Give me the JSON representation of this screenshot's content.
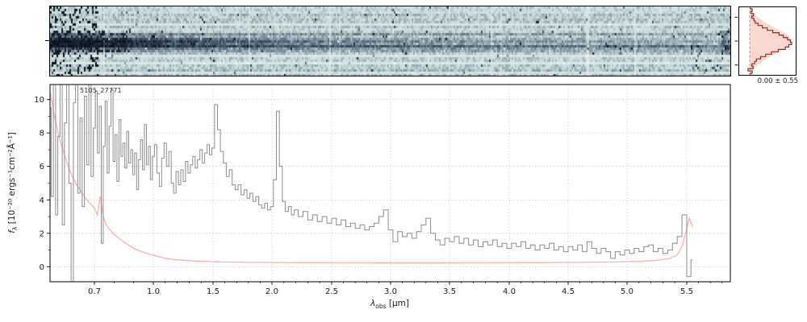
{
  "figure": {
    "background": "#ffffff"
  },
  "source_label": "5105_27771",
  "profile_stat": "0.00 ± 0.55",
  "axis_labels": {
    "x_main": "λ",
    "x_sub": "obs",
    "x_unit": " [μm]",
    "y_main": "f",
    "y_sub": "λ",
    "y_unit": " [10⁻²⁰ ergs⁻¹cm⁻²Å⁻¹]"
  },
  "chart_data": [
    {
      "id": "spectrum-1d",
      "type": "line",
      "title": "5105_27771",
      "xlabel": "λ_obs [μm]",
      "ylabel": "f_λ [10⁻²⁰ ergs⁻¹cm⁻²Å⁻¹]",
      "ylim": [
        -0.9,
        10.9
      ],
      "y_ticks": [
        0,
        2,
        4,
        6,
        8,
        10
      ],
      "y_minor_ticks": [
        1,
        3,
        5,
        7,
        9
      ],
      "x_ticks": [
        0.7,
        1.0,
        1.5,
        2.0,
        2.5,
        3.0,
        3.5,
        4.0,
        4.5,
        5.0,
        5.5
      ],
      "x_tick_labels": [
        "0.7",
        "1.0",
        "1.5",
        "2.0",
        "2.5",
        "3.0",
        "3.5",
        "4.0",
        "4.5",
        "5.0",
        "5.5"
      ],
      "grid": {
        "on": true,
        "style": "dotted",
        "color": "#bababa"
      },
      "x_axis": {
        "scale": "piecewise-prism-dispersion",
        "anchors_um": [
          0.6,
          0.7,
          1.0,
          1.5,
          2.0,
          2.5,
          3.0,
          3.5,
          4.0,
          4.5,
          5.0,
          5.5,
          5.87
        ],
        "anchors_frac": [
          0.0,
          0.0652,
          0.1518,
          0.2396,
          0.3262,
          0.414,
          0.5006,
          0.5872,
          0.675,
          0.7616,
          0.8482,
          0.936,
          1.0
        ]
      },
      "series": [
        {
          "name": "flux",
          "color": "#8c8c8c",
          "style": "steps-mid",
          "lam": [
            0.6,
            0.605,
            0.61,
            0.615,
            0.62,
            0.625,
            0.63,
            0.635,
            0.64,
            0.645,
            0.65,
            0.655,
            0.66,
            0.665,
            0.67,
            0.675,
            0.68,
            0.685,
            0.69,
            0.695,
            0.7,
            0.71,
            0.72,
            0.73,
            0.74,
            0.75,
            0.76,
            0.77,
            0.78,
            0.79,
            0.8,
            0.81,
            0.82,
            0.83,
            0.84,
            0.85,
            0.86,
            0.87,
            0.88,
            0.89,
            0.9,
            0.91,
            0.92,
            0.93,
            0.94,
            0.95,
            0.96,
            0.97,
            0.98,
            0.99,
            1.0,
            1.02,
            1.04,
            1.06,
            1.08,
            1.1,
            1.12,
            1.14,
            1.16,
            1.18,
            1.2,
            1.22,
            1.24,
            1.26,
            1.28,
            1.3,
            1.32,
            1.34,
            1.36,
            1.38,
            1.4,
            1.42,
            1.44,
            1.46,
            1.48,
            1.5,
            1.525,
            1.55,
            1.575,
            1.6,
            1.625,
            1.65,
            1.675,
            1.7,
            1.725,
            1.75,
            1.775,
            1.8,
            1.825,
            1.85,
            1.875,
            1.9,
            1.925,
            1.95,
            1.975,
            2.0,
            2.025,
            2.05,
            2.075,
            2.1,
            2.125,
            2.15,
            2.175,
            2.2,
            2.24,
            2.28,
            2.32,
            2.36,
            2.4,
            2.44,
            2.48,
            2.52,
            2.56,
            2.6,
            2.64,
            2.68,
            2.72,
            2.76,
            2.8,
            2.84,
            2.88,
            2.92,
            2.96,
            3.0,
            3.04,
            3.08,
            3.12,
            3.16,
            3.2,
            3.24,
            3.28,
            3.32,
            3.36,
            3.4,
            3.44,
            3.48,
            3.52,
            3.56,
            3.6,
            3.64,
            3.68,
            3.72,
            3.76,
            3.8,
            3.84,
            3.88,
            3.92,
            3.96,
            4.0,
            4.04,
            4.08,
            4.12,
            4.16,
            4.2,
            4.24,
            4.28,
            4.32,
            4.36,
            4.4,
            4.44,
            4.48,
            4.52,
            4.56,
            4.6,
            4.64,
            4.68,
            4.72,
            4.76,
            4.8,
            4.84,
            4.88,
            4.92,
            4.96,
            5.0,
            5.04,
            5.08,
            5.12,
            5.16,
            5.2,
            5.24,
            5.28,
            5.32,
            5.36,
            5.4,
            5.44,
            5.48,
            5.52,
            5.55
          ],
          "flux": [
            9.5,
            4.2,
            11.5,
            3.1,
            7.8,
            11.5,
            2.5,
            8.6,
            11.5,
            5.0,
            -1.2,
            9.8,
            11.5,
            4.4,
            8.9,
            3.6,
            10.2,
            6.1,
            11.3,
            5.4,
            8.3,
            10.5,
            6.8,
            9.6,
            1.4,
            7.2,
            9.9,
            5.6,
            8.4,
            10.6,
            6.3,
            7.9,
            5.1,
            8.8,
            6.6,
            7.4,
            5.9,
            8.1,
            6.2,
            7.0,
            5.5,
            6.8,
            4.6,
            6.4,
            7.6,
            5.8,
            8.5,
            6.1,
            7.2,
            5.2,
            6.6,
            7.3,
            5.6,
            4.8,
            6.5,
            7.4,
            6.0,
            6.9,
            5.0,
            4.4,
            5.7,
            4.9,
            5.8,
            5.1,
            6.3,
            5.6,
            6.1,
            6.6,
            5.9,
            6.4,
            7.0,
            6.2,
            6.8,
            7.3,
            6.7,
            7.1,
            9.7,
            8.2,
            6.9,
            6.2,
            5.4,
            5.8,
            4.9,
            4.6,
            4.9,
            4.3,
            4.6,
            4.1,
            4.4,
            3.9,
            4.2,
            3.7,
            3.5,
            3.8,
            3.4,
            3.6,
            5.2,
            9.3,
            6.0,
            3.9,
            3.3,
            3.6,
            3.1,
            3.4,
            3.0,
            3.3,
            2.8,
            3.1,
            2.7,
            3.0,
            2.6,
            2.9,
            2.5,
            2.8,
            2.4,
            2.6,
            2.3,
            2.5,
            2.2,
            2.4,
            2.6,
            3.0,
            3.4,
            2.2,
            1.5,
            2.1,
            1.8,
            2.0,
            1.7,
            2.1,
            2.5,
            2.9,
            2.0,
            1.6,
            1.3,
            1.7,
            1.5,
            1.8,
            1.4,
            1.7,
            1.3,
            1.6,
            1.2,
            1.5,
            1.3,
            1.6,
            1.2,
            1.4,
            1.1,
            1.4,
            1.2,
            1.5,
            1.1,
            1.3,
            1.0,
            1.3,
            1.1,
            1.4,
            1.0,
            1.2,
            0.9,
            1.2,
            1.0,
            1.3,
            0.9,
            1.5,
            1.1,
            0.8,
            1.1,
            0.9,
            0.5,
            0.9,
            0.7,
            1.0,
            0.8,
            1.1,
            0.9,
            1.2,
            1.3,
            0.9,
            1.1,
            0.8,
            1.0,
            1.4,
            1.8,
            3.1,
            -0.6,
            0.4
          ]
        },
        {
          "name": "uncertainty",
          "color": "#f4b3b0",
          "style": "line",
          "lam": [
            0.6,
            0.61,
            0.62,
            0.63,
            0.64,
            0.65,
            0.66,
            0.67,
            0.68,
            0.69,
            0.7,
            0.715,
            0.73,
            0.745,
            0.76,
            0.78,
            0.8,
            0.83,
            0.86,
            0.9,
            0.94,
            0.98,
            1.02,
            1.06,
            1.1,
            1.15,
            1.2,
            1.3,
            1.4,
            1.5,
            1.6,
            1.8,
            2.0,
            2.3,
            2.6,
            3.0,
            3.4,
            3.8,
            4.2,
            4.6,
            4.9,
            5.1,
            5.25,
            5.35,
            5.42,
            5.46,
            5.49,
            5.52,
            5.55
          ],
          "flux": [
            10.5,
            9.0,
            7.8,
            6.9,
            6.1,
            5.4,
            4.9,
            4.5,
            4.1,
            3.8,
            3.5,
            3.1,
            4.2,
            3.0,
            2.5,
            2.2,
            1.95,
            1.65,
            1.4,
            1.1,
            0.9,
            0.75,
            0.65,
            0.57,
            0.51,
            0.45,
            0.41,
            0.36,
            0.32,
            0.3,
            0.28,
            0.26,
            0.25,
            0.24,
            0.23,
            0.22,
            0.22,
            0.23,
            0.24,
            0.26,
            0.28,
            0.32,
            0.38,
            0.48,
            0.7,
            1.2,
            2.0,
            2.9,
            2.4
          ]
        }
      ]
    },
    {
      "id": "spectrum-2d",
      "type": "heatmap",
      "content": "2D rectified prism spectrum, dark source trace along center, strongest at blue end",
      "x_range_um": [
        0.6,
        5.87
      ],
      "colormap": [
        "#f4f8f8",
        "#ccdedd",
        "#4e6378",
        "#0b1320"
      ],
      "trace_center_frac": 0.5
    },
    {
      "id": "spatial-profile",
      "type": "histogram-step",
      "orientation": "horizontal",
      "stat_label": "0.00 ± 0.55",
      "center": 0.0,
      "sigma": 0.55,
      "line_color": "#7e342c",
      "model_color": "#fbd3cb",
      "guide_color": "#888888",
      "positions_arcsec": [
        -1.4,
        -1.3,
        -1.2,
        -1.1,
        -1.0,
        -0.9,
        -0.8,
        -0.7,
        -0.6,
        -0.5,
        -0.4,
        -0.3,
        -0.2,
        -0.1,
        0.0,
        0.1,
        0.2,
        0.3,
        0.4,
        0.5,
        0.6,
        0.7,
        0.8,
        0.9,
        1.0,
        1.1,
        1.2,
        1.3,
        1.4
      ],
      "profile": [
        0.02,
        0.06,
        -0.04,
        0.08,
        0.05,
        0.12,
        0.16,
        0.26,
        0.38,
        0.52,
        0.68,
        0.85,
        0.93,
        1.0,
        0.97,
        0.9,
        0.8,
        0.7,
        0.55,
        0.42,
        0.3,
        0.2,
        0.13,
        0.1,
        0.05,
        0.09,
        0.03,
        0.06,
        0.02
      ]
    }
  ]
}
